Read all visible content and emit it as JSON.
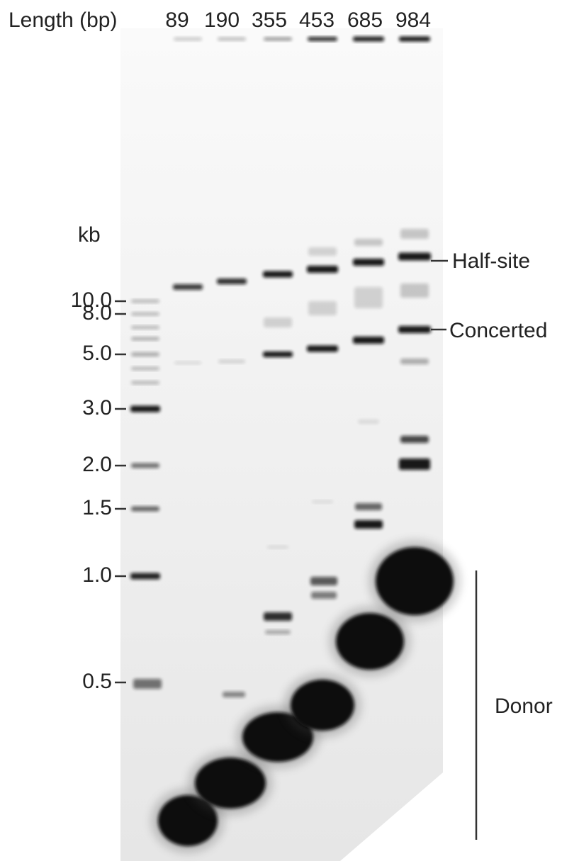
{
  "header": {
    "label": "Length (bp)",
    "lanes": [
      89,
      190,
      355,
      453,
      685,
      984
    ]
  },
  "marker": {
    "unit": "kb",
    "labels": [
      "10.0",
      "8.0",
      "5.0",
      "3.0",
      "2.0",
      "1.5",
      "1.0",
      "0.5"
    ]
  },
  "annotations": {
    "half_site": "Half-site",
    "concerted": "Concerted",
    "donor": "Donor"
  }
}
